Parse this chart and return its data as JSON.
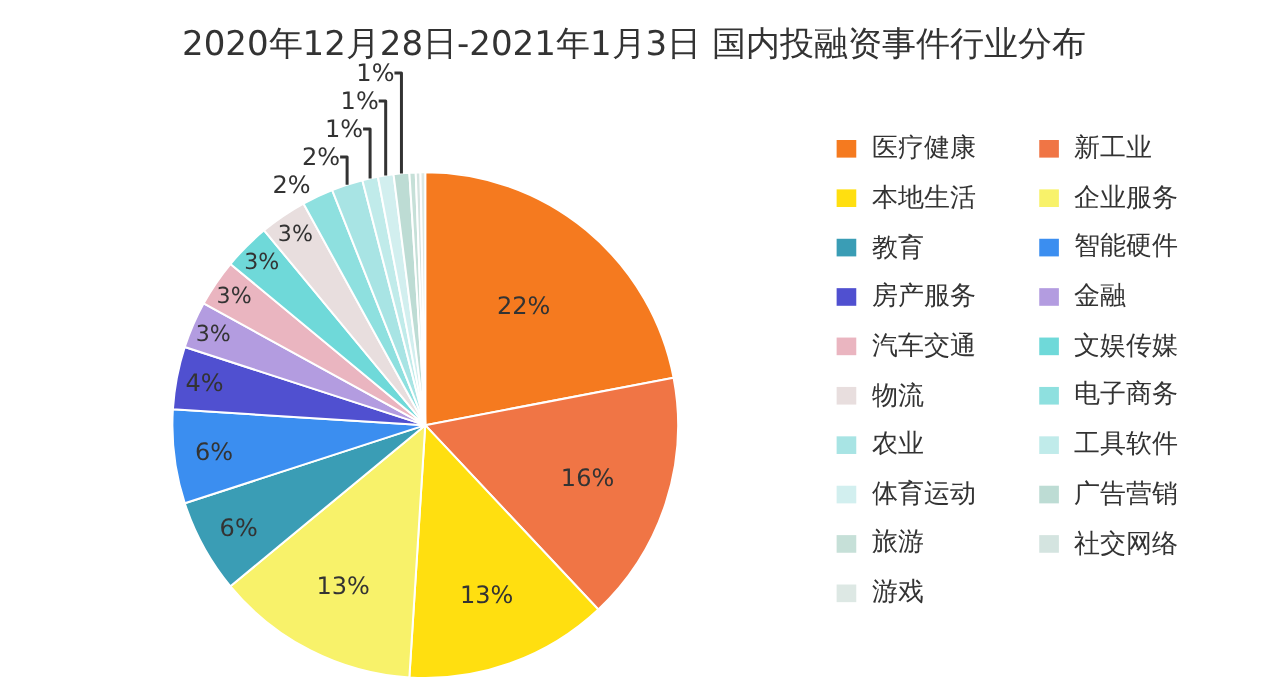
{
  "chart_data": {
    "type": "pie",
    "title": "2020年12月28日-2021年1月3日 国内投融资事件行业分布",
    "categories": [
      "医疗健康",
      "新工业",
      "本地生活",
      "企业服务",
      "教育",
      "智能硬件",
      "房产服务",
      "金融",
      "汽车交通",
      "文娱传媒",
      "物流",
      "电子商务",
      "农业",
      "工具软件",
      "体育运动",
      "广告营销",
      "旅游",
      "社交网络",
      "游戏"
    ],
    "values": [
      22,
      16,
      13,
      13,
      6,
      6,
      4,
      3,
      3,
      3,
      3,
      2,
      2,
      1,
      1,
      1,
      0.4,
      0.3,
      0.3
    ],
    "value_labels": [
      "22%",
      "16%",
      "13%",
      "13%",
      "6%",
      "6%",
      "4%",
      "3%",
      "3%",
      "3%",
      "3%",
      "2%",
      "2%",
      "1%",
      "1%",
      "1%",
      null,
      null,
      null
    ],
    "colors": [
      "#f57a1f",
      "#f07545",
      "#ffdf10",
      "#f8f26a",
      "#3a9db5",
      "#3b8ef0",
      "#5050d0",
      "#b39ce0",
      "#eab5c0",
      "#6fd9d9",
      "#e8dede",
      "#8ee0df",
      "#a8e4e4",
      "#c0ebea",
      "#d2efef",
      "#bddcd4",
      "#c6e0d8",
      "#d4e4e0",
      "#dde8e4"
    ],
    "legend": "right"
  }
}
